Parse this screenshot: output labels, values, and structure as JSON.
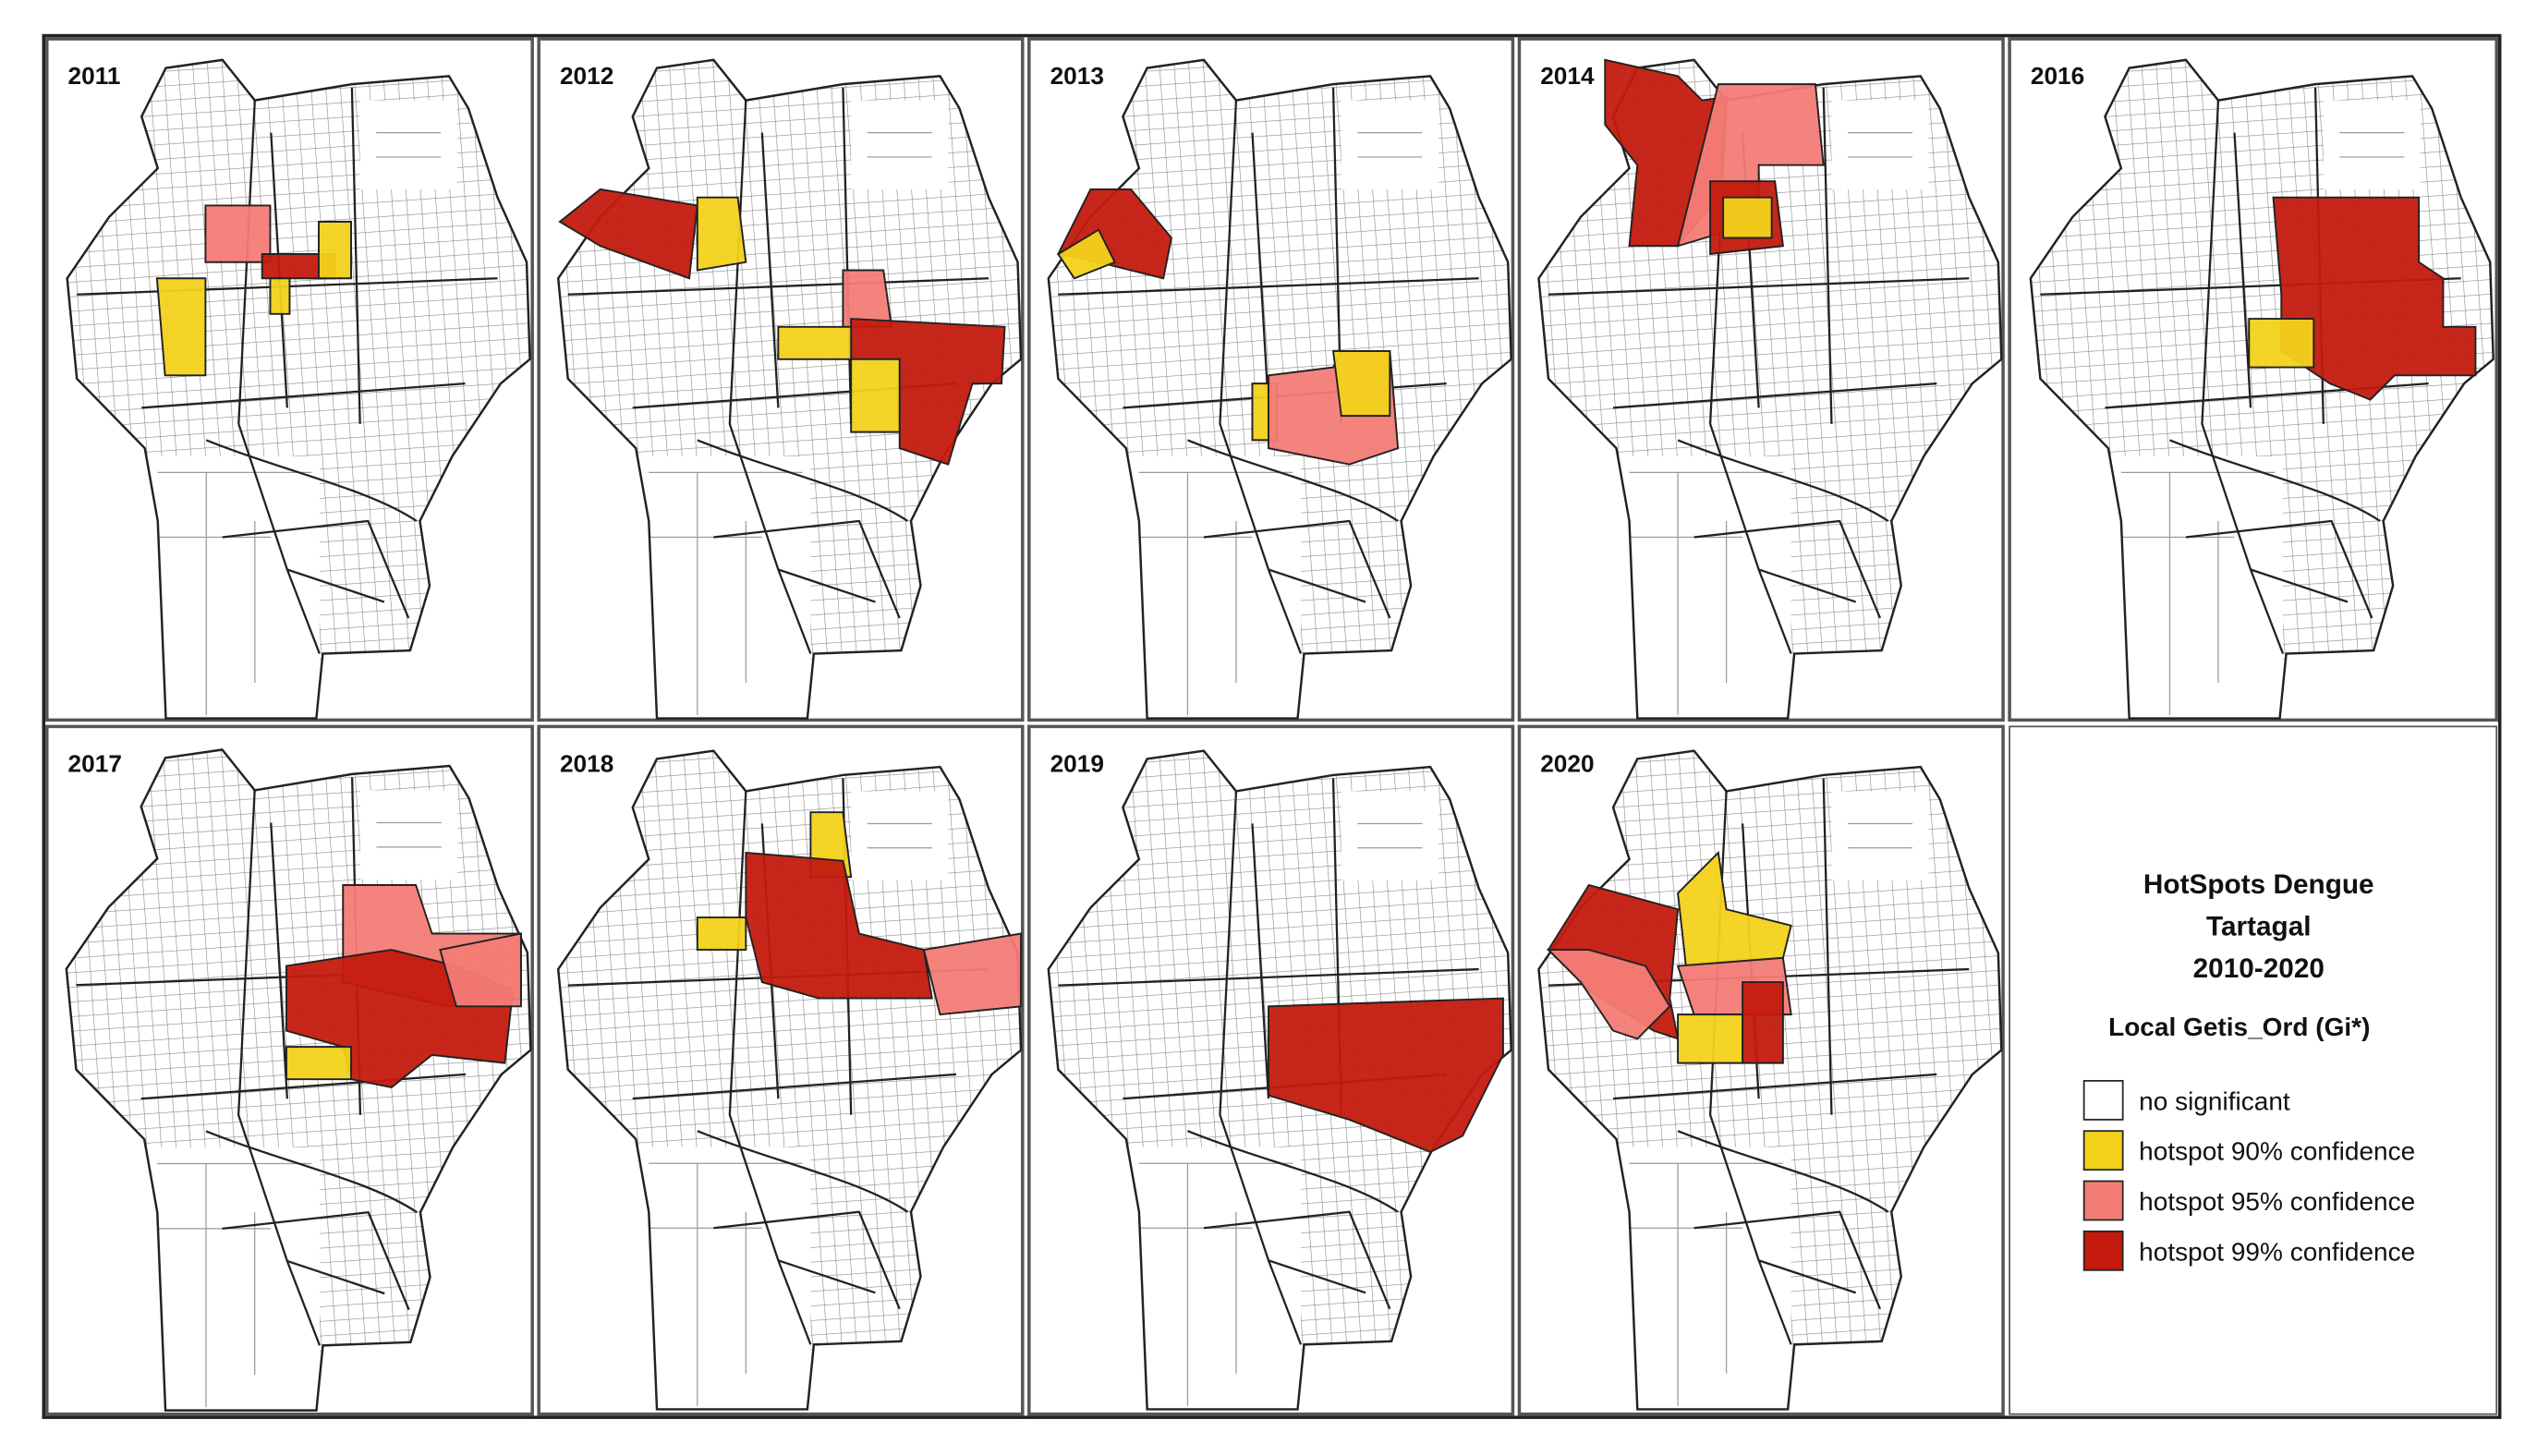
{
  "panels": [
    {
      "label": "2011"
    },
    {
      "label": "2012"
    },
    {
      "label": "2013"
    },
    {
      "label": "2014"
    },
    {
      "label": "2016"
    },
    {
      "label": "2017"
    },
    {
      "label": "2018"
    },
    {
      "label": "2019"
    },
    {
      "label": "2020"
    }
  ],
  "legend": {
    "title": [
      "HotSpots Dengue",
      "Tartagal",
      "2010-2020"
    ],
    "subtitle": "Local Getis_Ord (Gi*)",
    "items": [
      {
        "label": "no significant",
        "color": "#ffffff"
      },
      {
        "label": "hotspot 90% confidence",
        "color": "#f2d21b"
      },
      {
        "label": "hotspot 95% confidence",
        "color": "#f47c76"
      },
      {
        "label": "hotspot 99% confidence",
        "color": "#c41a0e"
      }
    ]
  }
}
